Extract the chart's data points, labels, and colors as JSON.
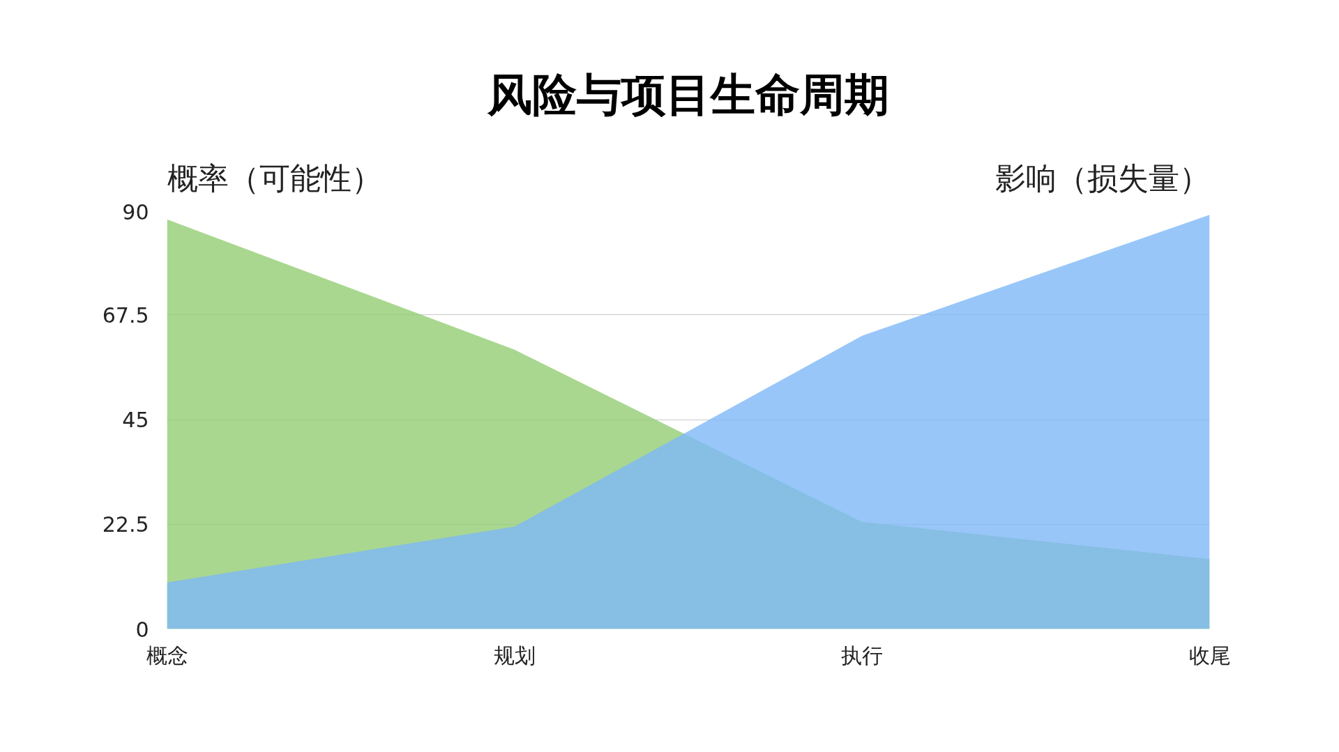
{
  "chart_data": {
    "type": "area",
    "title": "风险与项目生命周期",
    "categories": [
      "概念",
      "规划",
      "执行",
      "收尾"
    ],
    "series": [
      {
        "name": "概率（可能性）",
        "color": "#93cd74",
        "values": [
          88,
          60,
          23,
          15
        ]
      },
      {
        "name": "影响（损失量）",
        "color": "#7eb8f7",
        "values": [
          10,
          22,
          63,
          89
        ]
      }
    ],
    "ylim": [
      0,
      90
    ],
    "yticks": [
      0,
      22.5,
      45,
      67.5,
      90
    ],
    "grid": "y"
  }
}
